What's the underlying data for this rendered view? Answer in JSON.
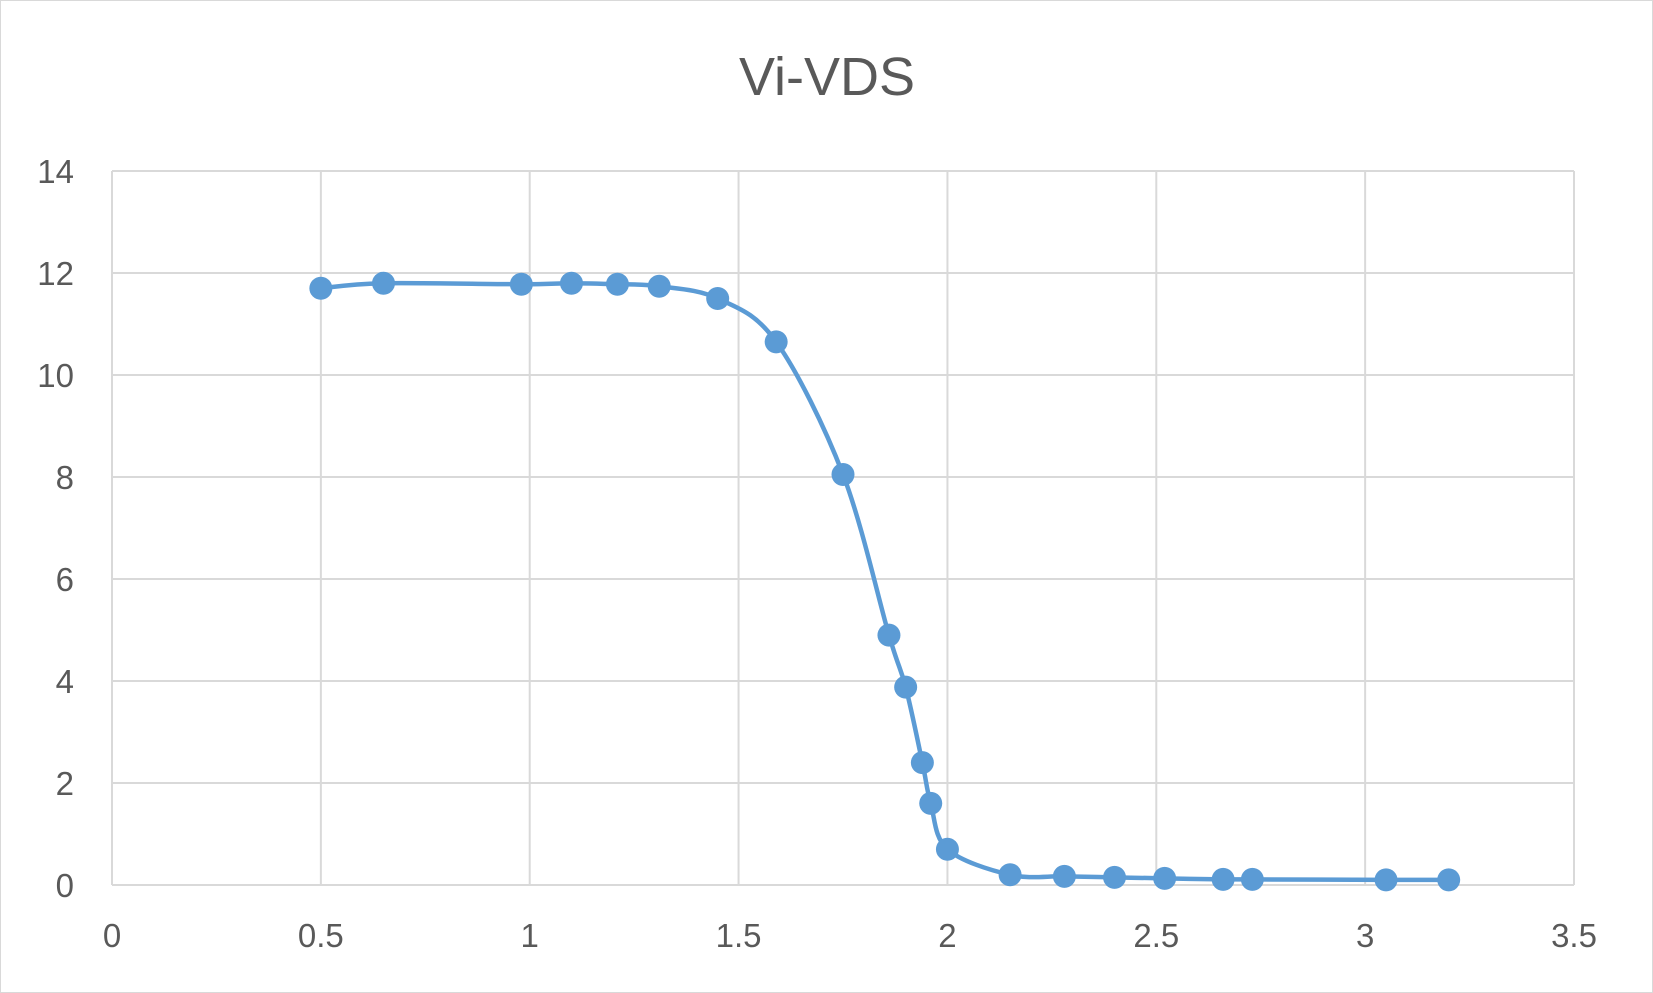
{
  "chart_data": {
    "type": "scatter",
    "title": "Vi-VDS",
    "xlabel": "",
    "ylabel": "",
    "xlim": [
      0,
      3.5
    ],
    "ylim": [
      0,
      14
    ],
    "x_ticks": [
      "0",
      "0.5",
      "1",
      "1.5",
      "2",
      "2.5",
      "3",
      "3.5"
    ],
    "y_ticks": [
      "0",
      "2",
      "4",
      "6",
      "8",
      "10",
      "12",
      "14"
    ],
    "grid": true,
    "legend": "none",
    "smooth_line": true,
    "color": "#5b9bd5",
    "series": [
      {
        "points": [
          [
            0.5,
            11.7
          ],
          [
            0.65,
            11.8
          ],
          [
            0.98,
            11.78
          ],
          [
            1.1,
            11.8
          ],
          [
            1.21,
            11.78
          ],
          [
            1.31,
            11.74
          ],
          [
            1.45,
            11.5
          ],
          [
            1.59,
            10.65
          ],
          [
            1.75,
            8.05
          ],
          [
            1.86,
            4.9
          ],
          [
            1.9,
            3.88
          ],
          [
            1.94,
            2.4
          ],
          [
            1.96,
            1.6
          ],
          [
            2.0,
            0.7
          ],
          [
            2.15,
            0.2
          ],
          [
            2.28,
            0.17
          ],
          [
            2.4,
            0.15
          ],
          [
            2.52,
            0.13
          ],
          [
            2.66,
            0.11
          ],
          [
            2.73,
            0.11
          ],
          [
            3.05,
            0.1
          ],
          [
            3.2,
            0.1
          ]
        ]
      }
    ]
  }
}
